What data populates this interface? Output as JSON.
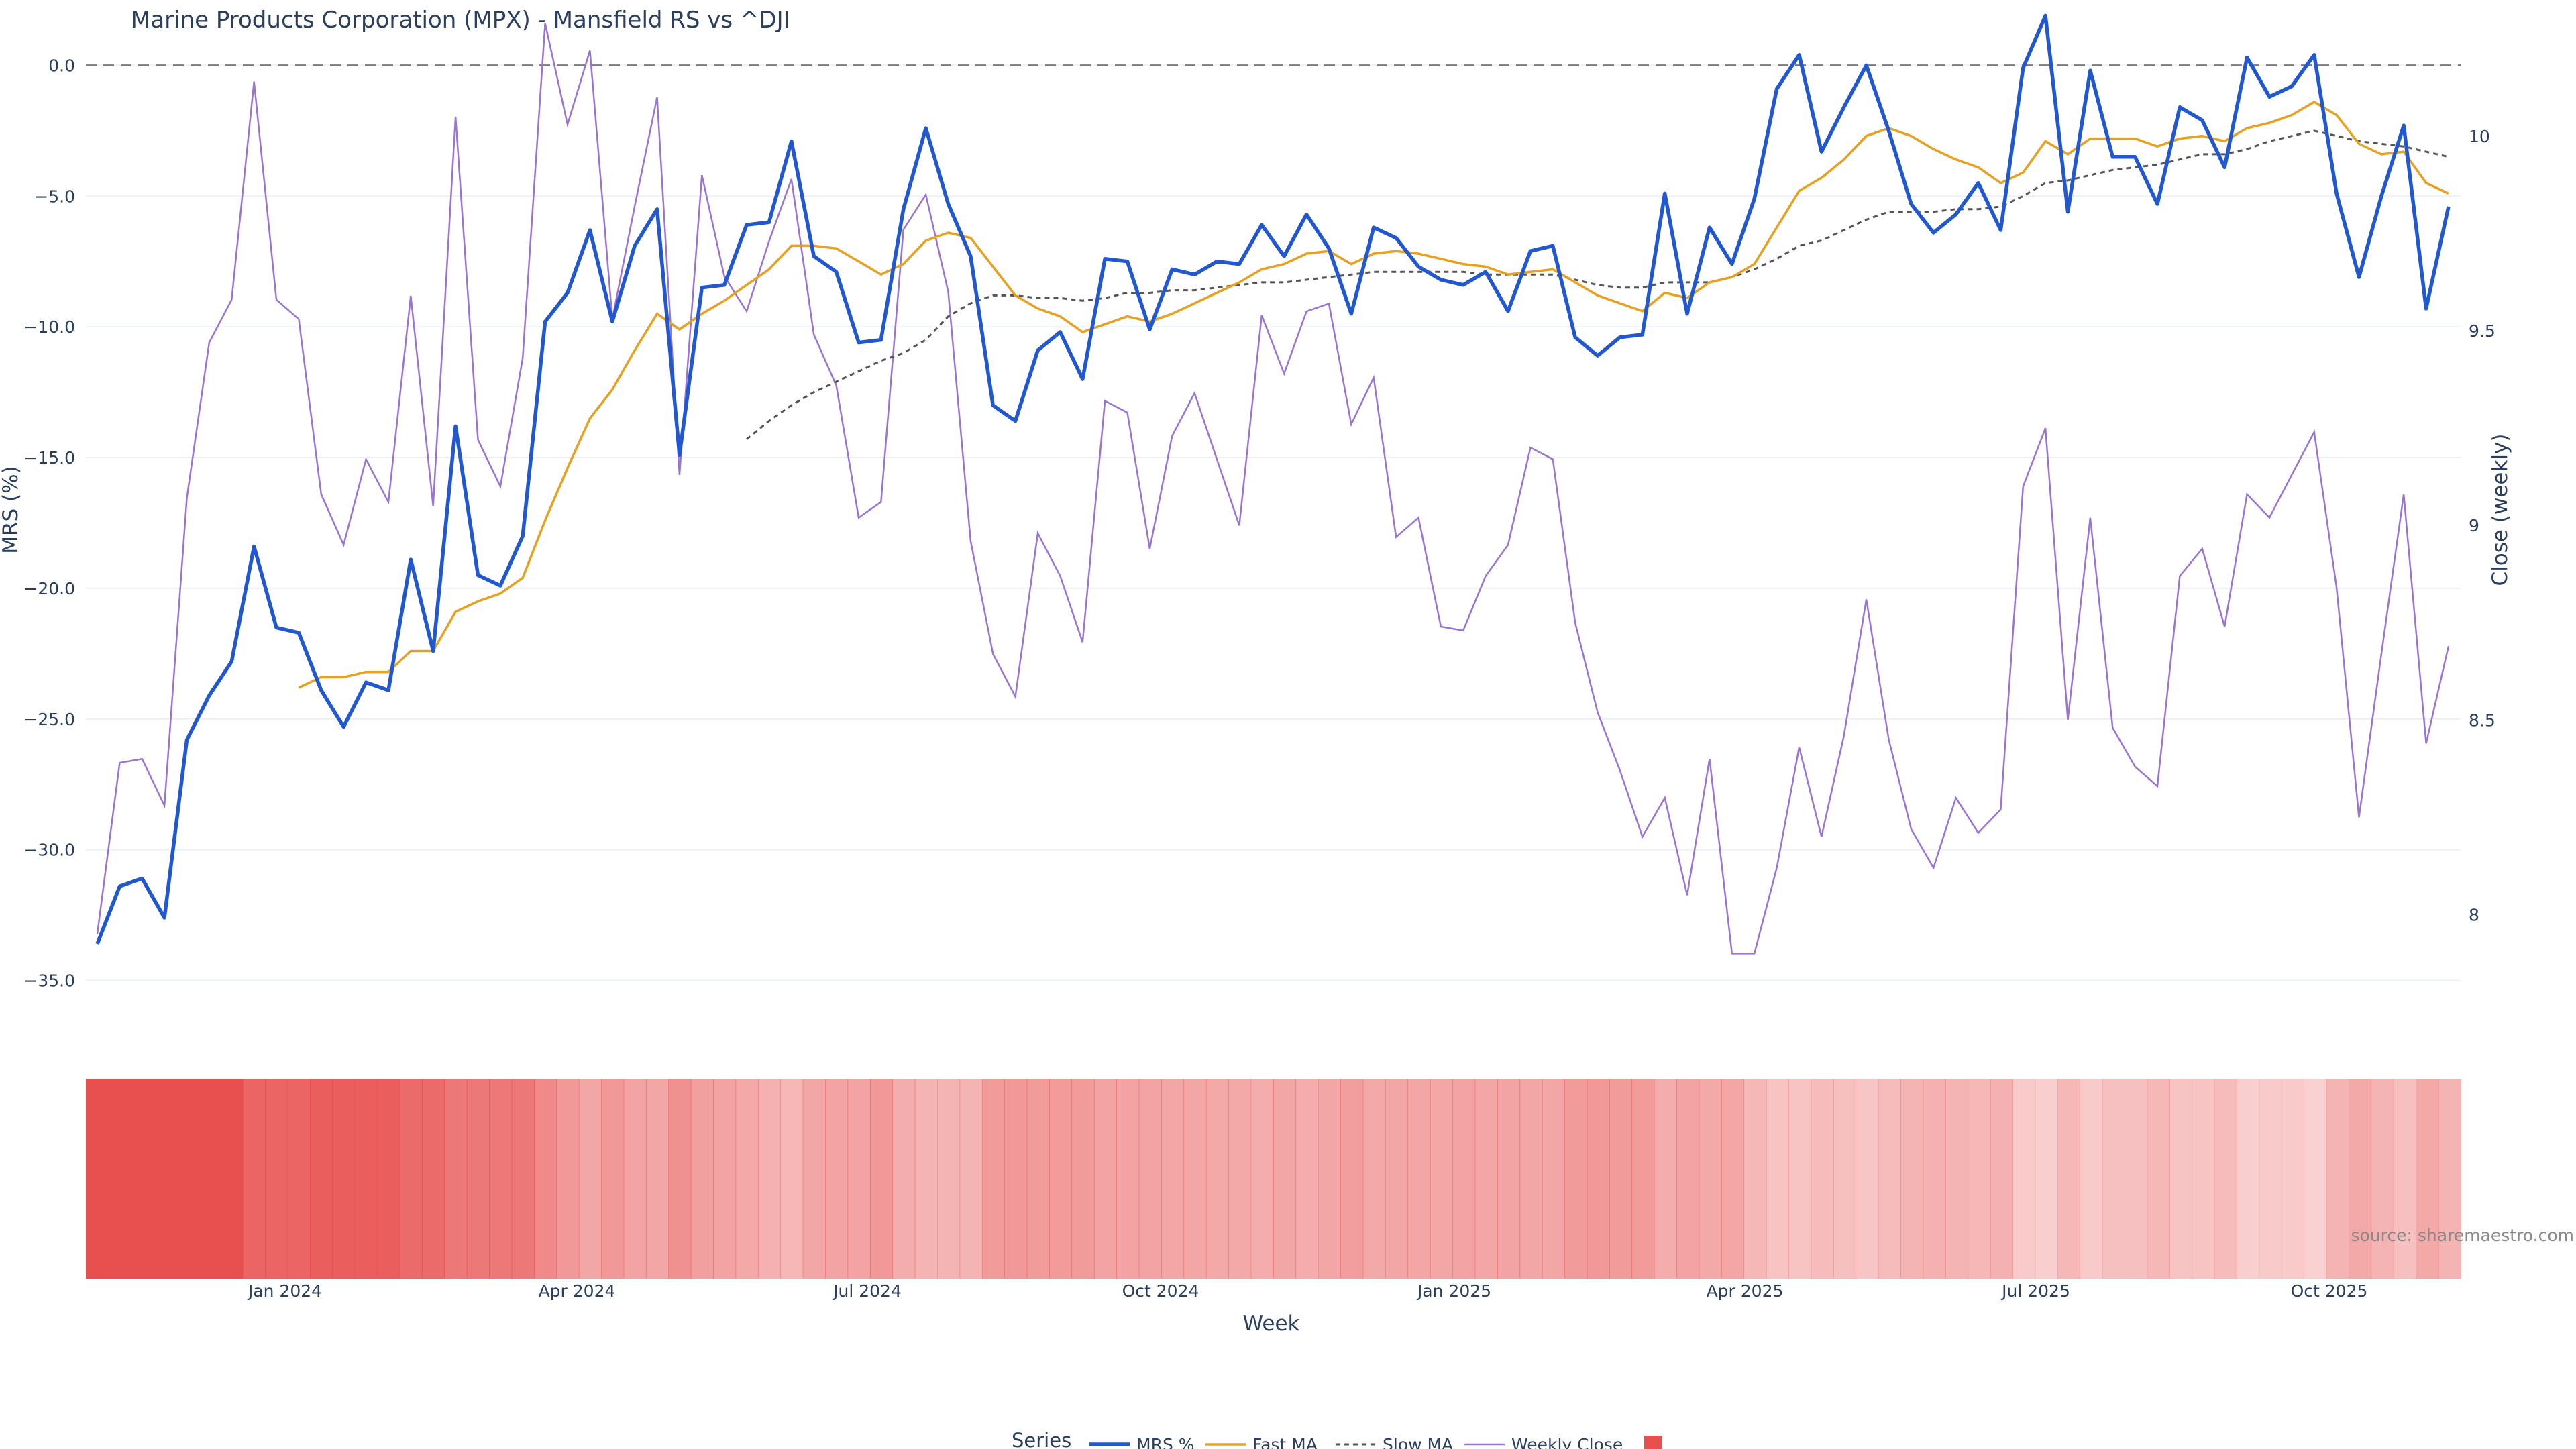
{
  "chart_data": {
    "type": "line",
    "title": "Marine Products Corporation (MPX) - Mansfield RS vs ^DJI",
    "xlabel": "Week",
    "ylabel_left": "MRS (%)",
    "ylabel_right": "Close (weekly)",
    "x_ticks": [
      "Jan 2024",
      "Apr 2024",
      "Jul 2024",
      "Oct 2024",
      "Jan 2025",
      "Apr 2025",
      "Jul 2025",
      "Oct 2025"
    ],
    "y_left_ticks": [
      "0.0",
      "−5.0",
      "−10.0",
      "−15.0",
      "−20.0",
      "−25.0",
      "−30.0",
      "−35.0"
    ],
    "y_left_range": [
      -36.5,
      2.5
    ],
    "y_right_ticks": [
      "10",
      "9.5",
      "9",
      "8.5",
      "8"
    ],
    "y_right_range": [
      7.73,
      10.35
    ],
    "reference_line": 0.0,
    "grid": true,
    "legend_title": "Series",
    "legend_position": "bottom-center",
    "source": "source: sharemaestro.com",
    "colors": {
      "mrs": "#2158d0",
      "fast": "#e8a020",
      "slow": "#555555",
      "close": "#9a74d4",
      "strip": "#e85050"
    },
    "series": [
      {
        "name": "MRS %",
        "values": [
          -33.6,
          -31.4,
          -31.1,
          -32.6,
          -25.8,
          -24.1,
          -22.8,
          -18.4,
          -21.5,
          -21.7,
          -23.9,
          -25.3,
          -23.6,
          -23.9,
          -18.9,
          -22.4,
          -13.8,
          -19.5,
          -19.9,
          -18.0,
          -9.8,
          -8.7,
          -6.3,
          -9.8,
          -6.9,
          -5.5,
          -14.9,
          -8.5,
          -8.4,
          -6.1,
          -6.0,
          -2.9,
          -7.3,
          -7.9,
          -10.6,
          -10.5,
          -5.5,
          -2.4,
          -5.3,
          -7.3,
          -13.0,
          -13.6,
          -10.9,
          -10.2,
          -12.0,
          -7.4,
          -7.5,
          -10.1,
          -7.8,
          -8.0,
          -7.5,
          -7.6,
          -6.1,
          -7.3,
          -5.7,
          -7.0,
          -9.5,
          -6.2,
          -6.6,
          -7.7,
          -8.2,
          -8.4,
          -7.9,
          -9.4,
          -7.1,
          -6.9,
          -10.4,
          -11.1,
          -10.4,
          -10.3,
          -4.9,
          -9.5,
          -6.2,
          -7.6,
          -5.1,
          -0.9,
          0.4,
          -3.3,
          -1.6,
          0.0,
          -2.5,
          -5.3,
          -6.4,
          -5.7,
          -4.5,
          -6.3,
          -0.1,
          1.9,
          -5.6,
          -0.2,
          -3.5,
          -3.5,
          -5.3,
          -1.6,
          -2.1,
          -3.9,
          0.3,
          -1.2,
          -0.8,
          0.4,
          -4.9,
          -8.1,
          -5.0,
          -2.3,
          -9.3,
          -5.4
        ]
      },
      {
        "name": "Fast MA",
        "values": [
          null,
          null,
          null,
          null,
          null,
          null,
          null,
          null,
          null,
          -23.8,
          -23.4,
          -23.4,
          -23.2,
          -23.2,
          -22.4,
          -22.4,
          -20.9,
          -20.5,
          -20.2,
          -19.6,
          -17.4,
          -15.4,
          -13.5,
          -12.4,
          -10.9,
          -9.5,
          -10.1,
          -9.5,
          -9.0,
          -8.4,
          -7.8,
          -6.9,
          -6.9,
          -7.0,
          -7.5,
          -8.0,
          -7.6,
          -6.7,
          -6.4,
          -6.6,
          -7.7,
          -8.8,
          -9.3,
          -9.6,
          -10.2,
          -9.9,
          -9.6,
          -9.8,
          -9.5,
          -9.1,
          -8.7,
          -8.3,
          -7.8,
          -7.6,
          -7.2,
          -7.1,
          -7.6,
          -7.2,
          -7.1,
          -7.2,
          -7.4,
          -7.6,
          -7.7,
          -8.0,
          -7.9,
          -7.8,
          -8.3,
          -8.8,
          -9.1,
          -9.4,
          -8.7,
          -8.9,
          -8.3,
          -8.1,
          -7.6,
          -6.2,
          -4.8,
          -4.3,
          -3.6,
          -2.7,
          -2.4,
          -2.7,
          -3.2,
          -3.6,
          -3.9,
          -4.5,
          -4.1,
          -2.9,
          -3.4,
          -2.8,
          -2.8,
          -2.8,
          -3.1,
          -2.8,
          -2.7,
          -2.9,
          -2.4,
          -2.2,
          -1.9,
          -1.4,
          -1.9,
          -3.0,
          -3.4,
          -3.3,
          -4.5,
          -4.9
        ]
      },
      {
        "name": "Slow MA",
        "values": [
          null,
          null,
          null,
          null,
          null,
          null,
          null,
          null,
          null,
          null,
          null,
          null,
          null,
          null,
          null,
          null,
          null,
          null,
          null,
          null,
          null,
          null,
          null,
          null,
          null,
          null,
          null,
          null,
          null,
          -14.3,
          -13.6,
          -13.0,
          -12.5,
          -12.1,
          -11.7,
          -11.3,
          -11.0,
          -10.5,
          -9.6,
          -9.1,
          -8.8,
          -8.8,
          -8.9,
          -8.9,
          -9.0,
          -8.9,
          -8.7,
          -8.7,
          -8.6,
          -8.6,
          -8.5,
          -8.4,
          -8.3,
          -8.3,
          -8.2,
          -8.1,
          -8.0,
          -7.9,
          -7.9,
          -7.9,
          -7.9,
          -7.9,
          -8.0,
          -8.0,
          -8.0,
          -8.0,
          -8.2,
          -8.4,
          -8.5,
          -8.5,
          -8.3,
          -8.3,
          -8.3,
          -8.1,
          -7.8,
          -7.4,
          -6.9,
          -6.7,
          -6.3,
          -5.9,
          -5.6,
          -5.6,
          -5.6,
          -5.5,
          -5.5,
          -5.4,
          -5.0,
          -4.5,
          -4.4,
          -4.2,
          -4.0,
          -3.9,
          -3.8,
          -3.6,
          -3.4,
          -3.4,
          -3.2,
          -2.9,
          -2.7,
          -2.5,
          -2.7,
          -2.9,
          -3.0,
          -3.1,
          -3.3,
          -3.5
        ]
      },
      {
        "name": "Weekly Close",
        "axis": "right",
        "values": [
          7.95,
          8.39,
          8.4,
          8.28,
          9.07,
          9.47,
          9.58,
          10.14,
          9.58,
          9.53,
          9.08,
          8.95,
          9.17,
          9.06,
          9.59,
          9.05,
          10.05,
          9.22,
          9.1,
          9.43,
          10.29,
          10.03,
          10.22,
          9.53,
          9.82,
          10.1,
          9.13,
          9.9,
          9.64,
          9.55,
          9.73,
          9.89,
          9.49,
          9.36,
          9.02,
          9.06,
          9.76,
          9.85,
          9.6,
          8.96,
          8.67,
          8.56,
          8.98,
          8.87,
          8.7,
          9.32,
          9.29,
          8.94,
          9.23,
          9.34,
          9.17,
          9.0,
          9.54,
          9.39,
          9.55,
          9.57,
          9.26,
          9.38,
          8.97,
          9.02,
          8.74,
          8.73,
          8.87,
          8.95,
          9.2,
          9.17,
          8.75,
          8.52,
          8.37,
          8.2,
          8.3,
          8.05,
          8.4,
          7.9,
          7.9,
          8.12,
          8.43,
          8.2,
          8.46,
          8.81,
          8.45,
          8.22,
          8.12,
          8.3,
          8.21,
          8.27,
          9.1,
          9.25,
          8.5,
          9.02,
          8.48,
          8.38,
          8.33,
          8.87,
          8.94,
          8.74,
          9.08,
          9.02,
          9.13,
          9.24,
          8.84,
          8.25,
          8.67,
          9.08,
          8.44,
          8.69
        ]
      }
    ],
    "strip_intensity": [
      1.0,
      1.0,
      1.0,
      1.0,
      1.0,
      1.0,
      1.0,
      0.85,
      0.85,
      0.85,
      0.9,
      0.9,
      0.9,
      0.9,
      0.82,
      0.82,
      0.72,
      0.72,
      0.72,
      0.72,
      0.6,
      0.5,
      0.4,
      0.5,
      0.42,
      0.4,
      0.55,
      0.45,
      0.42,
      0.38,
      0.32,
      0.28,
      0.4,
      0.42,
      0.42,
      0.5,
      0.35,
      0.3,
      0.3,
      0.3,
      0.48,
      0.5,
      0.48,
      0.48,
      0.48,
      0.42,
      0.42,
      0.42,
      0.4,
      0.4,
      0.38,
      0.38,
      0.36,
      0.4,
      0.36,
      0.4,
      0.46,
      0.38,
      0.4,
      0.4,
      0.4,
      0.42,
      0.4,
      0.42,
      0.4,
      0.4,
      0.48,
      0.5,
      0.48,
      0.48,
      0.36,
      0.42,
      0.38,
      0.4,
      0.28,
      0.2,
      0.2,
      0.25,
      0.22,
      0.18,
      0.25,
      0.3,
      0.32,
      0.3,
      0.28,
      0.32,
      0.15,
      0.12,
      0.28,
      0.15,
      0.22,
      0.22,
      0.28,
      0.2,
      0.2,
      0.25,
      0.12,
      0.15,
      0.15,
      0.1,
      0.3,
      0.38,
      0.3,
      0.22,
      0.38,
      0.3
    ]
  }
}
